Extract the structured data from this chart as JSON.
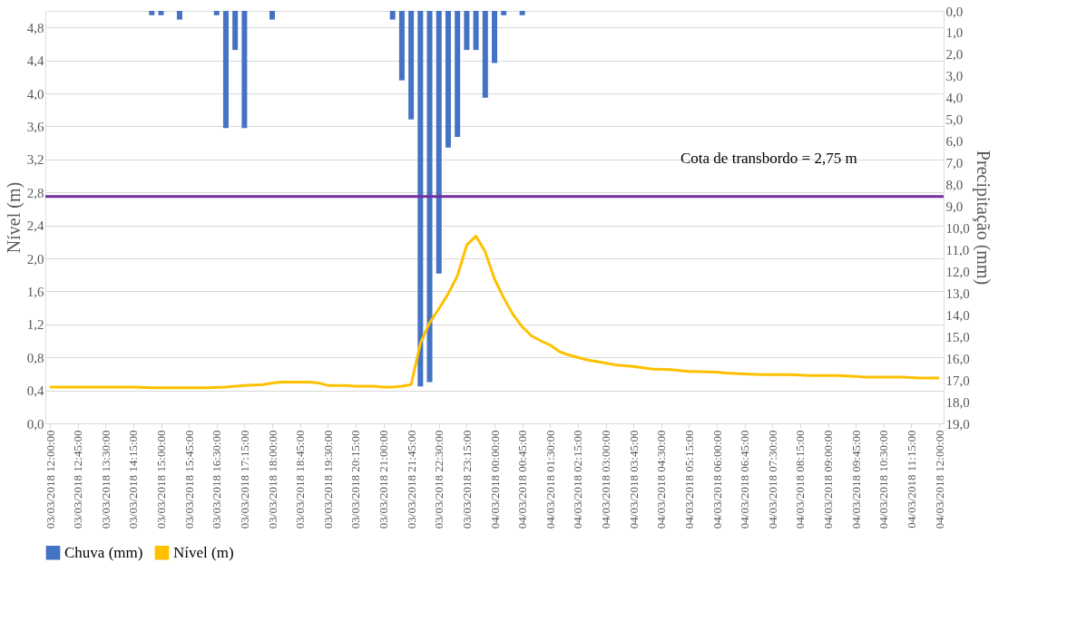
{
  "chart_data": {
    "type": "bar",
    "ylabel": "Nível (m)",
    "y2label": "Precipitação  (mm)",
    "xlim": [
      "2018-03-03T12:00",
      "2018-03-04T12:00"
    ],
    "xticks": [
      {
        "value": "2018-03-03T12:00",
        "label": "03/03/2018 12:00:00"
      },
      {
        "value": "2018-03-03T12:45",
        "label": "03/03/2018 12:45:00"
      },
      {
        "value": "2018-03-03T13:30",
        "label": "03/03/2018 13:30:00"
      },
      {
        "value": "2018-03-03T14:15",
        "label": "03/03/2018 14:15:00"
      },
      {
        "value": "2018-03-03T15:00",
        "label": "03/03/2018 15:00:00"
      },
      {
        "value": "2018-03-03T15:45",
        "label": "03/03/2018 15:45:00"
      },
      {
        "value": "2018-03-03T16:30",
        "label": "03/03/2018 16:30:00"
      },
      {
        "value": "2018-03-03T17:15",
        "label": "03/03/2018 17:15:00"
      },
      {
        "value": "2018-03-03T18:00",
        "label": "03/03/2018 18:00:00"
      },
      {
        "value": "2018-03-03T18:45",
        "label": "03/03/2018 18:45:00"
      },
      {
        "value": "2018-03-03T19:30",
        "label": "03/03/2018 19:30:00"
      },
      {
        "value": "2018-03-03T20:15",
        "label": "03/03/2018 20:15:00"
      },
      {
        "value": "2018-03-03T21:00",
        "label": "03/03/2018 21:00:00"
      },
      {
        "value": "2018-03-03T21:45",
        "label": "03/03/2018 21:45:00"
      },
      {
        "value": "2018-03-03T22:30",
        "label": "03/03/2018 22:30:00"
      },
      {
        "value": "2018-03-03T23:15",
        "label": "03/03/2018 23:15:00"
      },
      {
        "value": "2018-03-04T00:00",
        "label": "04/03/2018 00:00:00"
      },
      {
        "value": "2018-03-04T00:45",
        "label": "04/03/2018 00:45:00"
      },
      {
        "value": "2018-03-04T01:30",
        "label": "04/03/2018 01:30:00"
      },
      {
        "value": "2018-03-04T02:15",
        "label": "04/03/2018 02:15:00"
      },
      {
        "value": "2018-03-04T03:00",
        "label": "04/03/2018 03:00:00"
      },
      {
        "value": "2018-03-04T03:45",
        "label": "04/03/2018 03:45:00"
      },
      {
        "value": "2018-03-04T04:30",
        "label": "04/03/2018 04:30:00"
      },
      {
        "value": "2018-03-04T05:15",
        "label": "04/03/2018 05:15:00"
      },
      {
        "value": "2018-03-04T06:00",
        "label": "04/03/2018 06:00:00"
      },
      {
        "value": "2018-03-04T06:45",
        "label": "04/03/2018 06:45:00"
      },
      {
        "value": "2018-03-04T07:30",
        "label": "04/03/2018 07:30:00"
      },
      {
        "value": "2018-03-04T08:15",
        "label": "04/03/2018 08:15:00"
      },
      {
        "value": "2018-03-04T09:00",
        "label": "04/03/2018 09:00:00"
      },
      {
        "value": "2018-03-04T09:45",
        "label": "04/03/2018 09:45:00"
      },
      {
        "value": "2018-03-04T10:30",
        "label": "04/03/2018 10:30:00"
      },
      {
        "value": "2018-03-04T11:15",
        "label": "04/03/2018 11:15:00"
      },
      {
        "value": "2018-03-04T12:00",
        "label": "04/03/2018 12:00:00"
      }
    ],
    "ylim": [
      0,
      5
    ],
    "yticks": [
      {
        "value": 0,
        "label": "0,0"
      },
      {
        "value": 0.4,
        "label": "0,4"
      },
      {
        "value": 0.8,
        "label": "0,8"
      },
      {
        "value": 1.2,
        "label": "1,2"
      },
      {
        "value": 1.6,
        "label": "1,6"
      },
      {
        "value": 2.0,
        "label": "2,0"
      },
      {
        "value": 2.4,
        "label": "2,4"
      },
      {
        "value": 2.8,
        "label": "2,8"
      },
      {
        "value": 3.2,
        "label": "3,2"
      },
      {
        "value": 3.6,
        "label": "3,6"
      },
      {
        "value": 4.0,
        "label": "4,0"
      },
      {
        "value": 4.4,
        "label": "4,4"
      },
      {
        "value": 4.8,
        "label": "4,8"
      }
    ],
    "y2lim": [
      19,
      0
    ],
    "y2ticks": [
      {
        "value": 0,
        "label": "0,0"
      },
      {
        "value": 1,
        "label": "1,0"
      },
      {
        "value": 2,
        "label": "2,0"
      },
      {
        "value": 3,
        "label": "3,0"
      },
      {
        "value": 4,
        "label": "4,0"
      },
      {
        "value": 5,
        "label": "5,0"
      },
      {
        "value": 6,
        "label": "6,0"
      },
      {
        "value": 7,
        "label": "7,0"
      },
      {
        "value": 8,
        "label": "8,0"
      },
      {
        "value": 9,
        "label": "9,0"
      },
      {
        "value": 10,
        "label": "10,0"
      },
      {
        "value": 11,
        "label": "11,0"
      },
      {
        "value": 12,
        "label": "12,0"
      },
      {
        "value": 13,
        "label": "13,0"
      },
      {
        "value": 14,
        "label": "14,0"
      },
      {
        "value": 15,
        "label": "15,0"
      },
      {
        "value": 16,
        "label": "16,0"
      },
      {
        "value": 17,
        "label": "17,0"
      },
      {
        "value": 18,
        "label": "18,0"
      },
      {
        "value": 19,
        "label": "19,0"
      }
    ],
    "grid": "y",
    "legend": "bottom",
    "marker": "none",
    "line_style": "solid",
    "ref_lines": [
      {
        "axis": "y",
        "value": 2.75,
        "label": "Cota de transbordo  = 2,75 m",
        "color": "#7030a0"
      }
    ],
    "series": [
      {
        "name": "Chuva (mm)",
        "axis": "y2",
        "color": "#4472c4",
        "x": [
          "2018-03-03T14:45",
          "2018-03-03T15:00",
          "2018-03-03T15:30",
          "2018-03-03T16:30",
          "2018-03-03T16:45",
          "2018-03-03T17:00",
          "2018-03-03T17:15",
          "2018-03-03T18:00",
          "2018-03-03T21:15",
          "2018-03-03T21:30",
          "2018-03-03T21:45",
          "2018-03-03T22:00",
          "2018-03-03T22:15",
          "2018-03-03T22:30",
          "2018-03-03T22:45",
          "2018-03-03T23:00",
          "2018-03-03T23:15",
          "2018-03-03T23:30",
          "2018-03-03T23:45",
          "2018-03-04T00:00",
          "2018-03-04T00:15",
          "2018-03-04T00:45"
        ],
        "values": [
          0.2,
          0.2,
          0.4,
          0.2,
          5.4,
          1.8,
          5.4,
          0.4,
          0.4,
          3.2,
          5.0,
          17.3,
          17.1,
          12.1,
          6.3,
          5.8,
          1.8,
          1.8,
          4.0,
          2.4,
          0.2,
          0.2
        ]
      },
      {
        "name": "Nível (m)",
        "type": "line",
        "axis": "y",
        "color": "#ffc000",
        "x": [
          "2018-03-03T12:00",
          "2018-03-03T14:15",
          "2018-03-03T14:45",
          "2018-03-03T16:15",
          "2018-03-03T16:45",
          "2018-03-03T17:15",
          "2018-03-03T17:45",
          "2018-03-03T18:00",
          "2018-03-03T18:15",
          "2018-03-03T19:00",
          "2018-03-03T19:15",
          "2018-03-03T19:30",
          "2018-03-03T20:00",
          "2018-03-03T20:15",
          "2018-03-03T20:45",
          "2018-03-03T21:00",
          "2018-03-03T21:15",
          "2018-03-03T21:30",
          "2018-03-03T21:45",
          "2018-03-03T22:00",
          "2018-03-03T22:15",
          "2018-03-03T22:30",
          "2018-03-03T22:45",
          "2018-03-03T23:00",
          "2018-03-03T23:15",
          "2018-03-03T23:30",
          "2018-03-03T23:45",
          "2018-03-04T00:00",
          "2018-03-04T00:15",
          "2018-03-04T00:30",
          "2018-03-04T00:45",
          "2018-03-04T01:00",
          "2018-03-04T01:15",
          "2018-03-04T01:30",
          "2018-03-04T01:45",
          "2018-03-04T02:00",
          "2018-03-04T02:15",
          "2018-03-04T02:30",
          "2018-03-04T03:00",
          "2018-03-04T03:15",
          "2018-03-04T03:45",
          "2018-03-04T04:15",
          "2018-03-04T04:45",
          "2018-03-04T05:15",
          "2018-03-04T06:00",
          "2018-03-04T06:15",
          "2018-03-04T06:45",
          "2018-03-04T07:15",
          "2018-03-04T08:00",
          "2018-03-04T08:30",
          "2018-03-04T09:15",
          "2018-03-04T09:45",
          "2018-03-04T10:00",
          "2018-03-04T11:00",
          "2018-03-04T11:30",
          "2018-03-04T12:00"
        ],
        "values": [
          0.44,
          0.44,
          0.43,
          0.43,
          0.44,
          0.46,
          0.47,
          0.49,
          0.5,
          0.5,
          0.49,
          0.46,
          0.46,
          0.45,
          0.45,
          0.44,
          0.44,
          0.45,
          0.47,
          0.97,
          1.22,
          1.39,
          1.57,
          1.79,
          2.16,
          2.27,
          2.08,
          1.75,
          1.52,
          1.32,
          1.17,
          1.06,
          1.0,
          0.95,
          0.87,
          0.83,
          0.8,
          0.77,
          0.73,
          0.71,
          0.69,
          0.66,
          0.65,
          0.63,
          0.62,
          0.61,
          0.6,
          0.59,
          0.59,
          0.58,
          0.58,
          0.57,
          0.56,
          0.56,
          0.55,
          0.55
        ]
      }
    ]
  }
}
